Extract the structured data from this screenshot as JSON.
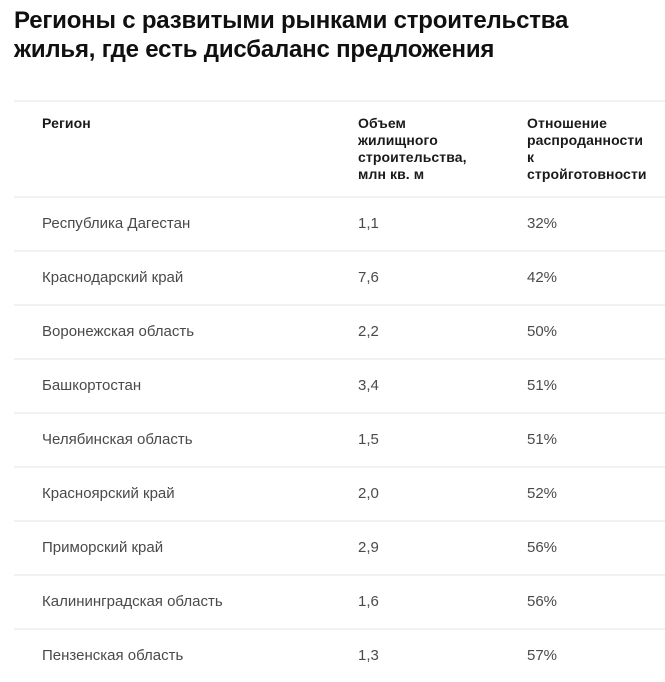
{
  "title": "Регионы с развитыми рынками строительства\nжилья, где есть дисбаланс предложения",
  "colors": {
    "title_text": "#101010",
    "header_text": "#1a1a1a",
    "row_text": "#4a4a4a",
    "divider": "#f2f2f2",
    "background": "#ffffff"
  },
  "table": {
    "columns": [
      {
        "label": "Регион"
      },
      {
        "label": "Объем\nжилищного\nстроительства,\nмлн кв. м"
      },
      {
        "label": "Отношение\nраспроданности\nк\nстройготовности"
      }
    ],
    "rows": [
      {
        "region": "Республика Дагестан",
        "volume": "1,1",
        "ratio": "32%"
      },
      {
        "region": "Краснодарский край",
        "volume": "7,6",
        "ratio": "42%"
      },
      {
        "region": "Воронежская область",
        "volume": "2,2",
        "ratio": "50%"
      },
      {
        "region": "Башкортостан",
        "volume": "3,4",
        "ratio": "51%"
      },
      {
        "region": "Челябинская область",
        "volume": "1,5",
        "ratio": "51%"
      },
      {
        "region": "Красноярский край",
        "volume": "2,0",
        "ratio": "52%"
      },
      {
        "region": "Приморский край",
        "volume": "2,9",
        "ratio": "56%"
      },
      {
        "region": "Калининградская область",
        "volume": "1,6",
        "ratio": "56%"
      },
      {
        "region": "Пензенская область",
        "volume": "1,3",
        "ratio": "57%"
      }
    ]
  },
  "chart_data": {
    "type": "table",
    "title": "Регионы с развитыми рынками строительства жилья, где есть дисбаланс предложения",
    "columns": [
      "Регион",
      "Объем жилищного строительства, млн кв. м",
      "Отношение распроданности к стройготовности"
    ],
    "rows": [
      [
        "Республика Дагестан",
        1.1,
        "32%"
      ],
      [
        "Краснодарский край",
        7.6,
        "42%"
      ],
      [
        "Воронежская область",
        2.2,
        "50%"
      ],
      [
        "Башкортостан",
        3.4,
        "51%"
      ],
      [
        "Челябинская область",
        1.5,
        "51%"
      ],
      [
        "Красноярский край",
        2.0,
        "52%"
      ],
      [
        "Приморский край",
        2.9,
        "56%"
      ],
      [
        "Калининградская область",
        1.6,
        "56%"
      ],
      [
        "Пензенская область",
        1.3,
        "57%"
      ]
    ]
  }
}
